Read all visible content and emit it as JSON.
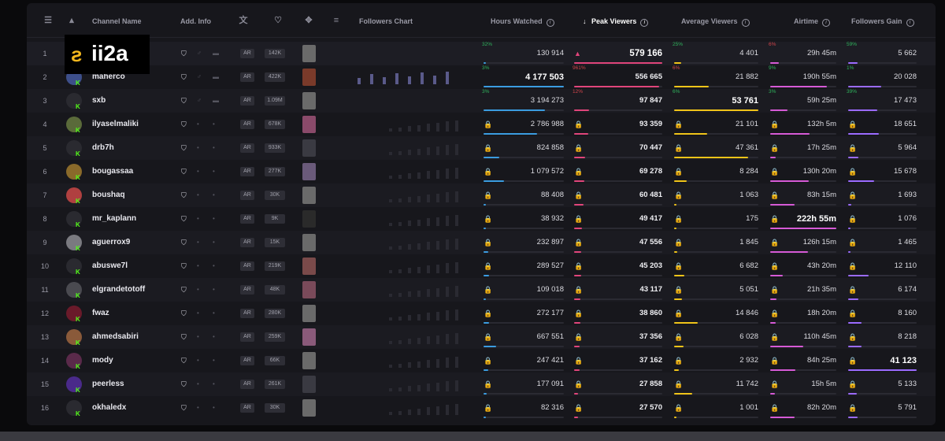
{
  "logo": {
    "text": "ii2a"
  },
  "header": {
    "channel_name": "Channel Name",
    "add_info": "Add. Info",
    "followers_chart": "Followers Chart",
    "hours_watched": "Hours Watched",
    "peak_viewers": "Peak Viewers",
    "average_viewers": "Average Viewers",
    "airtime": "Airtime",
    "followers_gain": "Followers Gain"
  },
  "colors": {
    "accent_green": "#53fc18",
    "hours_bar": "#3b9ce0",
    "peak_bar": "#e0457b",
    "avg_bar": "#f0c419",
    "airtime_bar": "#d65ad6",
    "gain_bar": "#9b6bff"
  },
  "rows": [
    {
      "rank": "1",
      "name": "i",
      "lang": "AR",
      "followers": "142K",
      "hours": "130 914",
      "hours_pct": "32%",
      "peak": "579 166",
      "avg": "4 401",
      "avg_pct": "25%",
      "air": "29h 45m",
      "air_pct": "6%",
      "gain": "5 662",
      "gain_pct": "59%",
      "hours_bold": false,
      "peak_bold": true,
      "avg_bold": false,
      "air_bold": false,
      "gain_bold": false
    },
    {
      "rank": "2",
      "name": "maherco",
      "lang": "AR",
      "followers": "422K",
      "hours": "4 177 503",
      "hours_pct": "3%",
      "peak": "556 665",
      "peak_pct": "961%",
      "avg": "21 882",
      "avg_pct": "6%",
      "air": "190h 55m",
      "air_pct": "9%",
      "gain": "20 028",
      "gain_pct": "1%",
      "hours_bold": true,
      "peak_bold": false,
      "avg_bold": false,
      "air_bold": false,
      "gain_bold": false
    },
    {
      "rank": "3",
      "name": "sxb",
      "lang": "AR",
      "followers": "1.09M",
      "hours": "3 194 273",
      "hours_pct": "3%",
      "peak": "97 847",
      "peak_pct": "12%",
      "avg": "53 761",
      "avg_pct": "6%",
      "air": "59h 25m",
      "air_pct": "3%",
      "gain": "17 473",
      "gain_pct": "39%",
      "hours_bold": false,
      "peak_bold": false,
      "avg_bold": true,
      "air_bold": false,
      "gain_bold": false
    },
    {
      "rank": "4",
      "name": "ilyaselmaliki",
      "lang": "AR",
      "followers": "678K",
      "hours": "2 786 988",
      "peak": "93 359",
      "avg": "21 101",
      "air": "132h 5m",
      "gain": "18 651"
    },
    {
      "rank": "5",
      "name": "drb7h",
      "lang": "AR",
      "followers": "933K",
      "hours": "824 858",
      "peak": "70 447",
      "avg": "47 361",
      "air": "17h 25m",
      "gain": "5 964"
    },
    {
      "rank": "6",
      "name": "bougassaa",
      "lang": "AR",
      "followers": "277K",
      "hours": "1 079 572",
      "peak": "69 278",
      "avg": "8 284",
      "air": "130h 20m",
      "gain": "15 678"
    },
    {
      "rank": "7",
      "name": "boushaq",
      "lang": "AR",
      "followers": "30K",
      "hours": "88 408",
      "peak": "60 481",
      "avg": "1 063",
      "air": "83h 15m",
      "gain": "1 693"
    },
    {
      "rank": "8",
      "name": "mr_kaplann",
      "lang": "AR",
      "followers": "9K",
      "hours": "38 932",
      "peak": "49 417",
      "avg": "175",
      "air": "222h 55m",
      "gain": "1 076",
      "air_bold": true
    },
    {
      "rank": "9",
      "name": "aguerrox9",
      "lang": "AR",
      "followers": "15K",
      "hours": "232 897",
      "peak": "47 556",
      "avg": "1 845",
      "air": "126h 15m",
      "gain": "1 465"
    },
    {
      "rank": "10",
      "name": "abuswe7l",
      "lang": "AR",
      "followers": "219K",
      "hours": "289 527",
      "peak": "45 203",
      "avg": "6 682",
      "air": "43h 20m",
      "gain": "12 110"
    },
    {
      "rank": "11",
      "name": "elgrandetotoff",
      "lang": "AR",
      "followers": "48K",
      "hours": "109 018",
      "peak": "43 117",
      "avg": "5 051",
      "air": "21h 35m",
      "gain": "6 174"
    },
    {
      "rank": "12",
      "name": "fwaz",
      "lang": "AR",
      "followers": "280K",
      "hours": "272 177",
      "peak": "38 860",
      "avg": "14 846",
      "air": "18h 20m",
      "gain": "8 160"
    },
    {
      "rank": "13",
      "name": "ahmedsabiri",
      "lang": "AR",
      "followers": "259K",
      "hours": "667 551",
      "peak": "37 356",
      "avg": "6 028",
      "air": "110h 45m",
      "gain": "8 218"
    },
    {
      "rank": "14",
      "name": "mody",
      "lang": "AR",
      "followers": "66K",
      "hours": "247 421",
      "peak": "37 162",
      "avg": "2 932",
      "air": "84h 25m",
      "gain": "41 123",
      "gain_bold": true
    },
    {
      "rank": "15",
      "name": "peerless",
      "lang": "AR",
      "followers": "261K",
      "hours": "177 091",
      "peak": "27 858",
      "avg": "11 742",
      "air": "15h 5m",
      "gain": "5 133"
    },
    {
      "rank": "16",
      "name": "okhaledx",
      "lang": "AR",
      "followers": "30K",
      "hours": "82 316",
      "peak": "27 570",
      "avg": "1 001",
      "air": "82h 20m",
      "gain": "5 791"
    }
  ]
}
